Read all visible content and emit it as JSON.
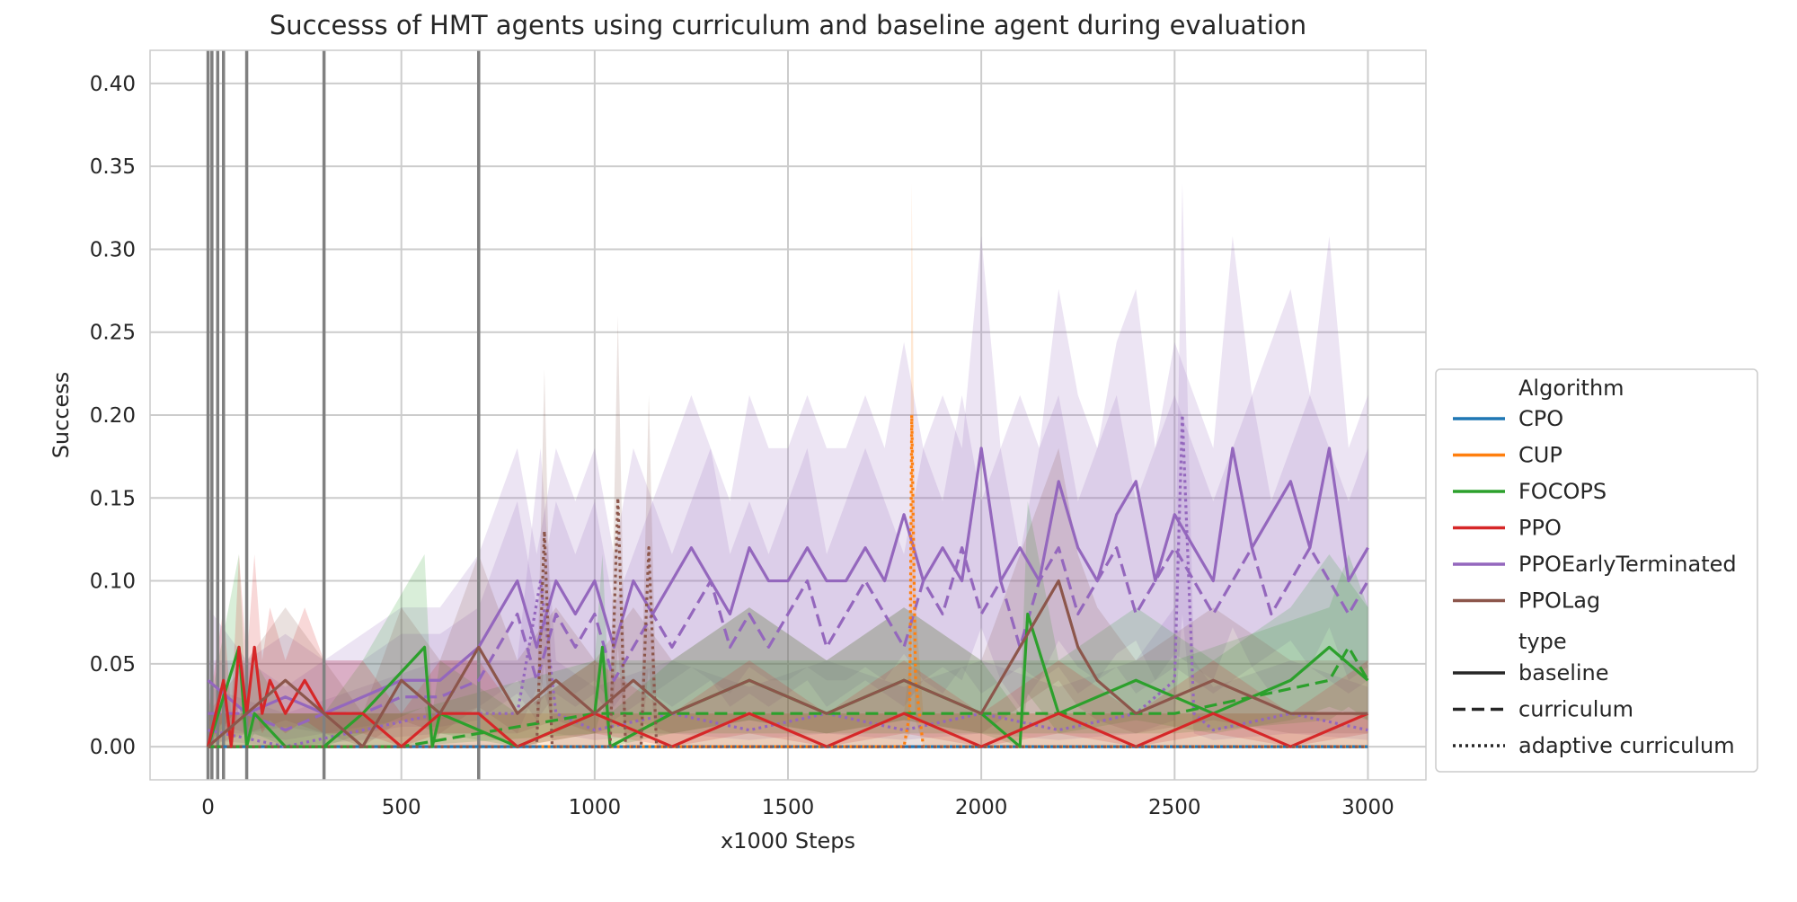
{
  "chart_data": {
    "type": "line",
    "title": "Successs of HMT agents using curriculum and baseline agent during evaluation",
    "xlabel": "x1000 Steps",
    "ylabel": "Success",
    "xlim": [
      -150,
      3150
    ],
    "ylim": [
      -0.02,
      0.42
    ],
    "x_ticks": [
      0,
      500,
      1000,
      1500,
      2000,
      2500,
      3000
    ],
    "y_ticks": [
      0.0,
      0.05,
      0.1,
      0.15,
      0.2,
      0.25,
      0.3,
      0.35,
      0.4
    ],
    "grid": true,
    "legend_placement": "right",
    "curriculum_switch_lines_x": [
      0,
      10,
      25,
      40,
      100,
      300,
      700
    ],
    "legend": {
      "algorithm_header": "Algorithm",
      "type_header": "type",
      "algorithms": [
        {
          "name": "CPO",
          "color": "#1f77b4"
        },
        {
          "name": "CUP",
          "color": "#ff7f0e"
        },
        {
          "name": "FOCOPS",
          "color": "#2ca02c"
        },
        {
          "name": "PPO",
          "color": "#d62728"
        },
        {
          "name": "PPOEarlyTerminated",
          "color": "#9467bd"
        },
        {
          "name": "PPOLag",
          "color": "#8c564b"
        }
      ],
      "types": [
        {
          "name": "baseline",
          "dash": "solid"
        },
        {
          "name": "curriculum",
          "dash": "dashed"
        },
        {
          "name": "adaptive curriculum",
          "dash": "dotted"
        }
      ]
    },
    "series": [
      {
        "algorithm": "CPO",
        "type": "baseline",
        "color": "#1f77b4",
        "x": [
          0,
          500,
          1000,
          1500,
          2000,
          2500,
          3000
        ],
        "y": [
          0,
          0,
          0,
          0,
          0,
          0,
          0
        ]
      },
      {
        "algorithm": "PPOEarlyTerminated",
        "type": "baseline",
        "color": "#9467bd",
        "x": [
          0,
          100,
          200,
          300,
          400,
          500,
          600,
          700,
          750,
          800,
          850,
          900,
          950,
          1000,
          1050,
          1100,
          1150,
          1200,
          1250,
          1300,
          1350,
          1400,
          1450,
          1500,
          1550,
          1600,
          1650,
          1700,
          1750,
          1800,
          1850,
          1900,
          1950,
          2000,
          2050,
          2100,
          2150,
          2200,
          2250,
          2300,
          2350,
          2400,
          2450,
          2500,
          2550,
          2600,
          2650,
          2700,
          2750,
          2800,
          2850,
          2900,
          2950,
          3000
        ],
        "y": [
          0.04,
          0.02,
          0.03,
          0.02,
          0.03,
          0.04,
          0.04,
          0.06,
          0.08,
          0.1,
          0.06,
          0.1,
          0.08,
          0.1,
          0.06,
          0.1,
          0.08,
          0.1,
          0.12,
          0.1,
          0.08,
          0.12,
          0.1,
          0.1,
          0.12,
          0.1,
          0.1,
          0.12,
          0.1,
          0.14,
          0.1,
          0.12,
          0.1,
          0.18,
          0.1,
          0.12,
          0.1,
          0.16,
          0.12,
          0.1,
          0.14,
          0.16,
          0.1,
          0.14,
          0.12,
          0.1,
          0.18,
          0.12,
          0.14,
          0.16,
          0.12,
          0.18,
          0.1,
          0.12
        ]
      },
      {
        "algorithm": "PPOEarlyTerminated",
        "type": "curriculum",
        "color": "#9467bd",
        "x": [
          0,
          100,
          200,
          300,
          400,
          500,
          600,
          700,
          750,
          800,
          850,
          900,
          950,
          1000,
          1050,
          1100,
          1150,
          1200,
          1250,
          1300,
          1350,
          1400,
          1450,
          1500,
          1550,
          1600,
          1650,
          1700,
          1750,
          1800,
          1850,
          1900,
          1950,
          2000,
          2050,
          2100,
          2150,
          2200,
          2250,
          2300,
          2350,
          2400,
          2450,
          2500,
          2550,
          2600,
          2650,
          2700,
          2750,
          2800,
          2850,
          2900,
          2950,
          3000
        ],
        "y": [
          0.02,
          0.02,
          0.01,
          0.02,
          0.02,
          0.03,
          0.03,
          0.04,
          0.06,
          0.08,
          0.04,
          0.08,
          0.06,
          0.08,
          0.04,
          0.06,
          0.08,
          0.06,
          0.08,
          0.1,
          0.06,
          0.08,
          0.06,
          0.08,
          0.1,
          0.06,
          0.08,
          0.1,
          0.08,
          0.06,
          0.1,
          0.08,
          0.12,
          0.08,
          0.1,
          0.06,
          0.1,
          0.12,
          0.08,
          0.1,
          0.12,
          0.08,
          0.1,
          0.12,
          0.1,
          0.08,
          0.1,
          0.12,
          0.08,
          0.1,
          0.12,
          0.1,
          0.08,
          0.1
        ]
      },
      {
        "algorithm": "PPOEarlyTerminated",
        "type": "adaptive curriculum",
        "color": "#9467bd",
        "x": [
          0,
          200,
          400,
          600,
          800,
          860,
          900,
          1000,
          1200,
          1400,
          1600,
          1800,
          2000,
          2200,
          2400,
          2500,
          2520,
          2550,
          2600,
          2800,
          3000
        ],
        "y": [
          0.01,
          0.0,
          0.01,
          0.02,
          0.02,
          0.1,
          0.02,
          0.01,
          0.02,
          0.01,
          0.02,
          0.01,
          0.02,
          0.01,
          0.02,
          0.04,
          0.2,
          0.02,
          0.01,
          0.02,
          0.01
        ]
      },
      {
        "algorithm": "CUP",
        "type": "adaptive curriculum",
        "color": "#ff7f0e",
        "x": [
          0,
          500,
          1000,
          1500,
          1800,
          1815,
          1820,
          1830,
          1850,
          2000,
          2500,
          3000
        ],
        "y": [
          0,
          0,
          0,
          0,
          0.0,
          0.02,
          0.2,
          0.04,
          0.0,
          0,
          0,
          0
        ]
      },
      {
        "algorithm": "FOCOPS",
        "type": "baseline",
        "color": "#2ca02c",
        "x": [
          0,
          80,
          100,
          120,
          200,
          300,
          400,
          560,
          580,
          600,
          800,
          1000,
          1020,
          1040,
          1200,
          1400,
          1600,
          1800,
          2000,
          2100,
          2120,
          2200,
          2400,
          2600,
          2800,
          2900,
          3000
        ],
        "y": [
          0.0,
          0.06,
          0.0,
          0.02,
          0.0,
          0.0,
          0.02,
          0.06,
          0.0,
          0.02,
          0.0,
          0.02,
          0.06,
          0.0,
          0.02,
          0.04,
          0.02,
          0.04,
          0.02,
          0.0,
          0.08,
          0.02,
          0.04,
          0.02,
          0.04,
          0.06,
          0.04
        ]
      },
      {
        "algorithm": "FOCOPS",
        "type": "curriculum",
        "color": "#2ca02c",
        "x": [
          0,
          500,
          1000,
          1500,
          2000,
          2500,
          2900,
          2950,
          3000
        ],
        "y": [
          0.0,
          0.0,
          0.02,
          0.02,
          0.02,
          0.02,
          0.04,
          0.06,
          0.04
        ]
      },
      {
        "algorithm": "PPO",
        "type": "baseline",
        "color": "#d62728",
        "x": [
          0,
          40,
          60,
          80,
          100,
          120,
          140,
          160,
          200,
          250,
          300,
          400,
          500,
          600,
          700,
          800,
          1000,
          1200,
          1400,
          1600,
          1800,
          2000,
          2200,
          2400,
          2600,
          2800,
          3000
        ],
        "y": [
          0.0,
          0.04,
          0.0,
          0.06,
          0.02,
          0.06,
          0.02,
          0.04,
          0.02,
          0.04,
          0.02,
          0.02,
          0.0,
          0.02,
          0.02,
          0.0,
          0.02,
          0.0,
          0.02,
          0.0,
          0.02,
          0.0,
          0.02,
          0.0,
          0.02,
          0.0,
          0.02
        ]
      },
      {
        "algorithm": "PPOLag",
        "type": "baseline",
        "color": "#8c564b",
        "x": [
          0,
          100,
          200,
          300,
          400,
          500,
          600,
          700,
          800,
          900,
          1000,
          1100,
          1200,
          1400,
          1600,
          1800,
          2000,
          2100,
          2150,
          2200,
          2250,
          2300,
          2400,
          2600,
          2800,
          3000
        ],
        "y": [
          0.0,
          0.02,
          0.04,
          0.02,
          0.0,
          0.04,
          0.02,
          0.06,
          0.02,
          0.04,
          0.02,
          0.04,
          0.02,
          0.04,
          0.02,
          0.04,
          0.02,
          0.06,
          0.08,
          0.1,
          0.06,
          0.04,
          0.02,
          0.04,
          0.02,
          0.02
        ]
      },
      {
        "algorithm": "PPOLag",
        "type": "adaptive curriculum",
        "color": "#8c564b",
        "x": [
          0,
          500,
          850,
          870,
          890,
          1000,
          1040,
          1060,
          1080,
          1120,
          1140,
          1160,
          1500,
          2000,
          2500,
          3000
        ],
        "y": [
          0.0,
          0.0,
          0.0,
          0.13,
          0.0,
          0.0,
          0.0,
          0.15,
          0.0,
          0.0,
          0.12,
          0.0,
          0.0,
          0.0,
          0.0,
          0.0
        ]
      }
    ]
  }
}
